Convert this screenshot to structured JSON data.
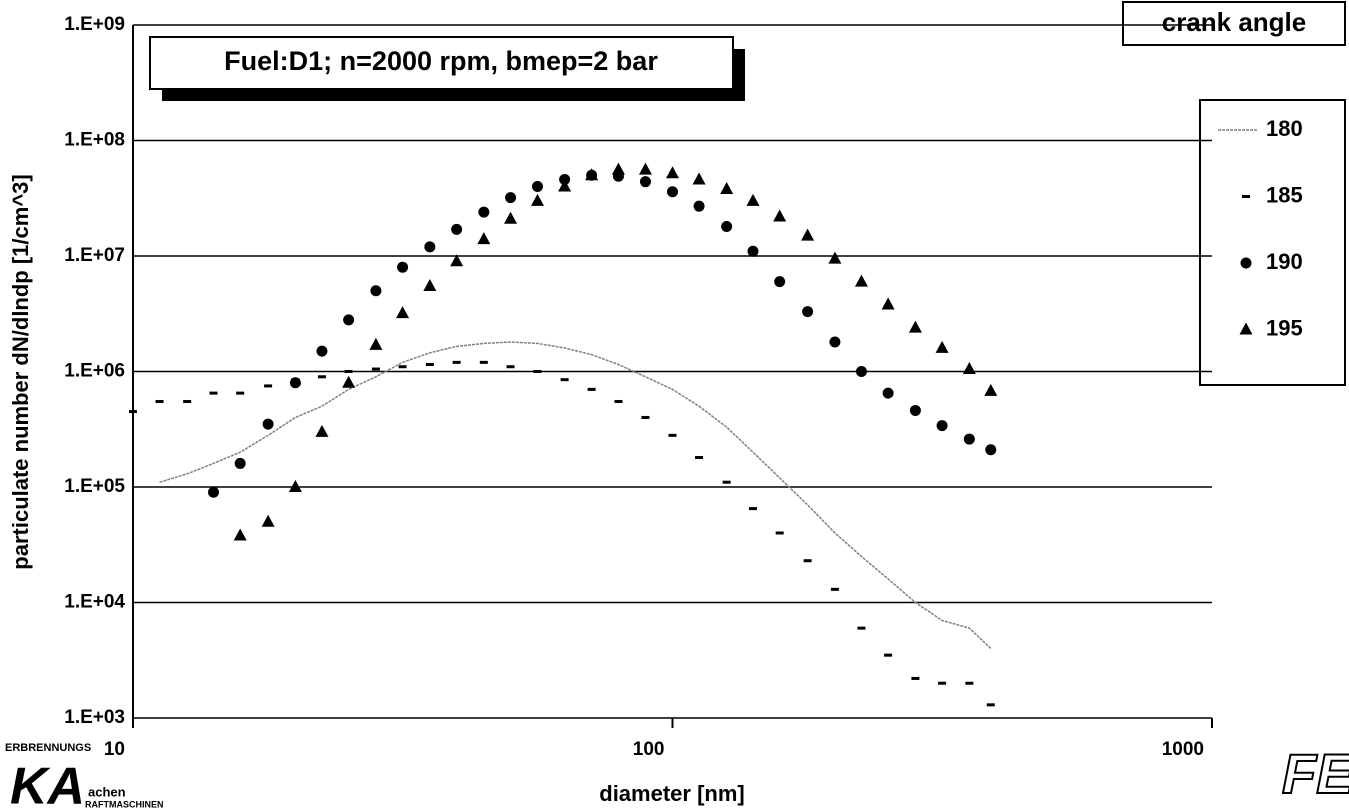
{
  "chart_data": {
    "type": "scatter",
    "title": "Fuel:D1; n=2000 rpm, bmep=2 bar",
    "x_label": "diameter [nm]",
    "y_label": "particulate number dN/dlndp [1/cm^3]",
    "legend_title": "crank angle",
    "legend": "right",
    "log_x": true,
    "log_y": true,
    "grid": true,
    "x": [
      10,
      11.2,
      12.6,
      14.1,
      15.8,
      17.8,
      20,
      22.4,
      25.1,
      28.2,
      31.6,
      35.5,
      39.8,
      44.7,
      50.1,
      56.2,
      63.1,
      70.8,
      79.4,
      89.1,
      100,
      112,
      126,
      141,
      158,
      178,
      200,
      224,
      251,
      282,
      316,
      355,
      389
    ],
    "series": [
      {
        "name": "180",
        "color": "#808080",
        "marker": "line",
        "values": [
          null,
          110000,
          130000,
          160000,
          200000,
          280000,
          400000,
          500000,
          700000,
          900000,
          1200000,
          1450000,
          1650000,
          1750000,
          1800000,
          1750000,
          1600000,
          1400000,
          1150000,
          900000,
          700000,
          500000,
          330000,
          200000,
          120000,
          70000,
          40000,
          25000,
          16000,
          10000,
          7000,
          6000,
          4000
        ]
      },
      {
        "name": "185",
        "color": "#000000",
        "marker": "dash",
        "values": [
          450000,
          550000,
          550000,
          650000,
          650000,
          750000,
          850000,
          900000,
          1000000,
          1050000,
          1100000,
          1150000,
          1200000,
          1200000,
          1100000,
          1000000,
          850000,
          700000,
          550000,
          400000,
          280000,
          180000,
          110000,
          65000,
          40000,
          23000,
          13000,
          6000,
          3500,
          2200,
          2000,
          2000,
          1300
        ]
      },
      {
        "name": "190",
        "color": "#000000",
        "marker": "circle",
        "values": [
          null,
          null,
          null,
          90000,
          160000,
          350000,
          800000,
          1500000,
          2800000,
          5000000,
          8000000,
          12000000,
          17000000,
          24000000,
          32000000,
          40000000,
          46000000,
          50000000,
          49000000,
          44000000,
          36000000,
          27000000,
          18000000,
          11000000,
          6000000,
          3300000,
          1800000,
          1000000,
          650000,
          460000,
          340000,
          260000,
          210000
        ]
      },
      {
        "name": "195",
        "color": "#000000",
        "marker": "triangle",
        "values": [
          null,
          null,
          null,
          null,
          38000,
          50000,
          100000,
          300000,
          800000,
          1700000,
          3200000,
          5500000,
          9000000,
          14000000,
          21000000,
          30000000,
          40000000,
          50000000,
          56000000,
          56000000,
          52000000,
          46000000,
          38000000,
          30000000,
          22000000,
          15000000,
          9500000,
          6000000,
          3800000,
          2400000,
          1600000,
          1050000,
          680000
        ]
      }
    ],
    "xlim": [
      10,
      1000
    ],
    "xticks": [
      10,
      100,
      1000
    ],
    "ylim": [
      1000,
      1000000000
    ],
    "yticks": [
      {
        "value": 1000,
        "label": "1.E+03"
      },
      {
        "value": 10000,
        "label": "1.E+04"
      },
      {
        "value": 100000,
        "label": "1.E+05"
      },
      {
        "value": 1000000,
        "label": "1.E+06"
      },
      {
        "value": 10000000,
        "label": "1.E+07"
      },
      {
        "value": 100000000,
        "label": "1.E+08"
      },
      {
        "value": 1000000000,
        "label": "1.E+09"
      }
    ],
    "logos": [
      "ERBRENNUNGS",
      "KA",
      "achen",
      "RAFTMASCHINEN",
      "FE"
    ]
  }
}
